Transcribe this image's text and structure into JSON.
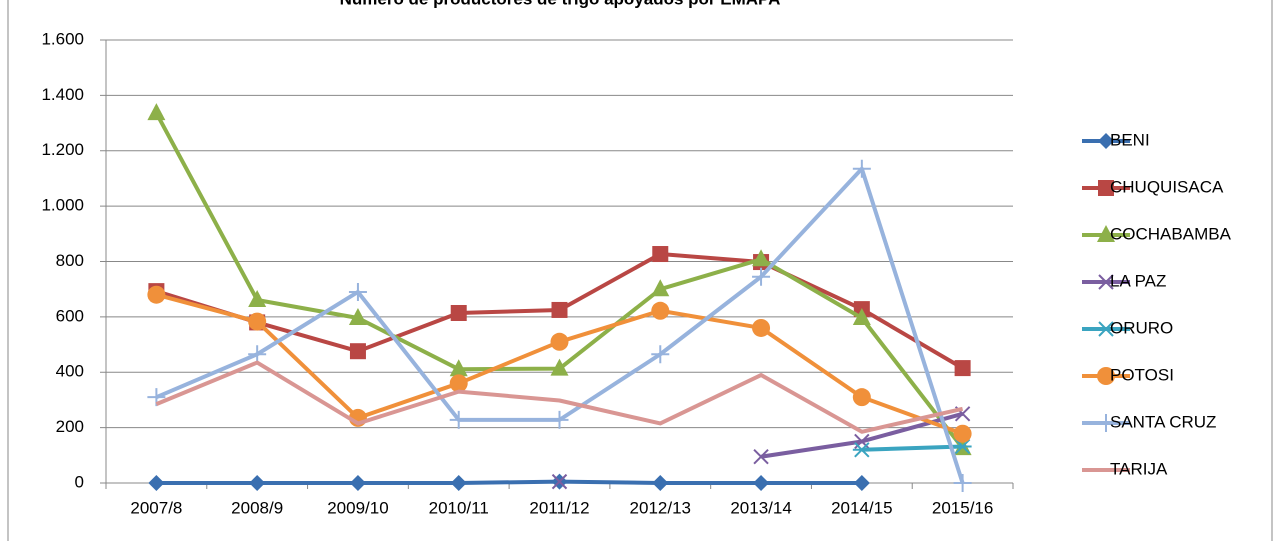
{
  "chart_data": {
    "type": "line",
    "title": "Número de productores de trigo apoyados por EMAPA",
    "categories": [
      "2007/8",
      "2008/9",
      "2009/10",
      "2010/11",
      "2011/12",
      "2012/13",
      "2013/14",
      "2014/15",
      "2015/16"
    ],
    "ylim": [
      0,
      1600
    ],
    "yticks": [
      0,
      200,
      400,
      600,
      800,
      {
        "value": 1000,
        "label": "1.000"
      },
      {
        "value": 1200,
        "label": "1.200"
      },
      {
        "value": 1400,
        "label": "1.400"
      },
      {
        "value": 1600,
        "label": "1.600"
      }
    ],
    "grid": true,
    "legend": "right",
    "series": [
      {
        "name": "BENI",
        "color": "#3a6fb0",
        "marker": "diamond",
        "values": [
          0,
          0,
          0,
          0,
          5,
          0,
          0,
          0,
          null
        ]
      },
      {
        "name": "CHUQUISACA",
        "color": "#b94744",
        "marker": "square",
        "values": [
          693,
          580,
          476,
          614,
          625,
          827,
          798,
          628,
          415
        ]
      },
      {
        "name": "COCHABAMBA",
        "color": "#8db049",
        "marker": "triangle",
        "values": [
          1336,
          661,
          596,
          411,
          413,
          700,
          808,
          596,
          126
        ]
      },
      {
        "name": "LA PAZ",
        "color": "#7a5ea0",
        "marker": "x",
        "values": [
          null,
          null,
          null,
          null,
          5,
          null,
          95,
          150,
          250
        ]
      },
      {
        "name": "ORURO",
        "color": "#3aa4c0",
        "marker": "star",
        "values": [
          null,
          null,
          null,
          null,
          null,
          null,
          null,
          120,
          132
        ]
      },
      {
        "name": "POTOSI",
        "color": "#f0903a",
        "marker": "circle",
        "values": [
          680,
          583,
          235,
          360,
          510,
          622,
          560,
          310,
          178
        ]
      },
      {
        "name": "SANTA CRUZ",
        "color": "#97b3dd",
        "marker": "plus",
        "values": [
          310,
          465,
          690,
          228,
          228,
          465,
          745,
          1135,
          0
        ]
      },
      {
        "name": "TARIJA",
        "color": "#d99693",
        "marker": "none",
        "values": [
          285,
          435,
          215,
          330,
          298,
          215,
          390,
          185,
          268
        ]
      }
    ]
  }
}
